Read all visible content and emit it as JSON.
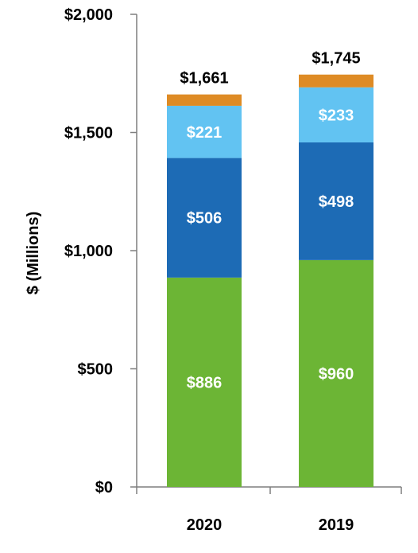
{
  "chart_data": {
    "type": "bar",
    "stacked": true,
    "categories": [
      "2020",
      "2019"
    ],
    "series": [
      {
        "values": [
          886,
          960
        ],
        "labels": [
          "$886",
          "$960"
        ],
        "color": "#6cb535"
      },
      {
        "values": [
          506,
          498
        ],
        "labels": [
          "$506",
          "$498"
        ],
        "color": "#1d6bb5"
      },
      {
        "values": [
          221,
          233
        ],
        "labels": [
          "$221",
          "$233"
        ],
        "color": "#62c3f2"
      },
      {
        "values": [
          48,
          54
        ],
        "labels": [
          "",
          ""
        ],
        "color": "#de8b25"
      }
    ],
    "totals": [
      "$1,661",
      "$1,745"
    ],
    "total_values": [
      1661,
      1745
    ],
    "ylabel": "$ (Millions)",
    "xlabel": "",
    "ylim": [
      0,
      2000
    ],
    "yticks": [
      0,
      500,
      1000,
      1500,
      2000
    ],
    "ytick_labels": [
      "$0",
      "$500",
      "$1,000",
      "$1,500",
      "$2,000"
    ],
    "grid": false,
    "legend": "none"
  }
}
